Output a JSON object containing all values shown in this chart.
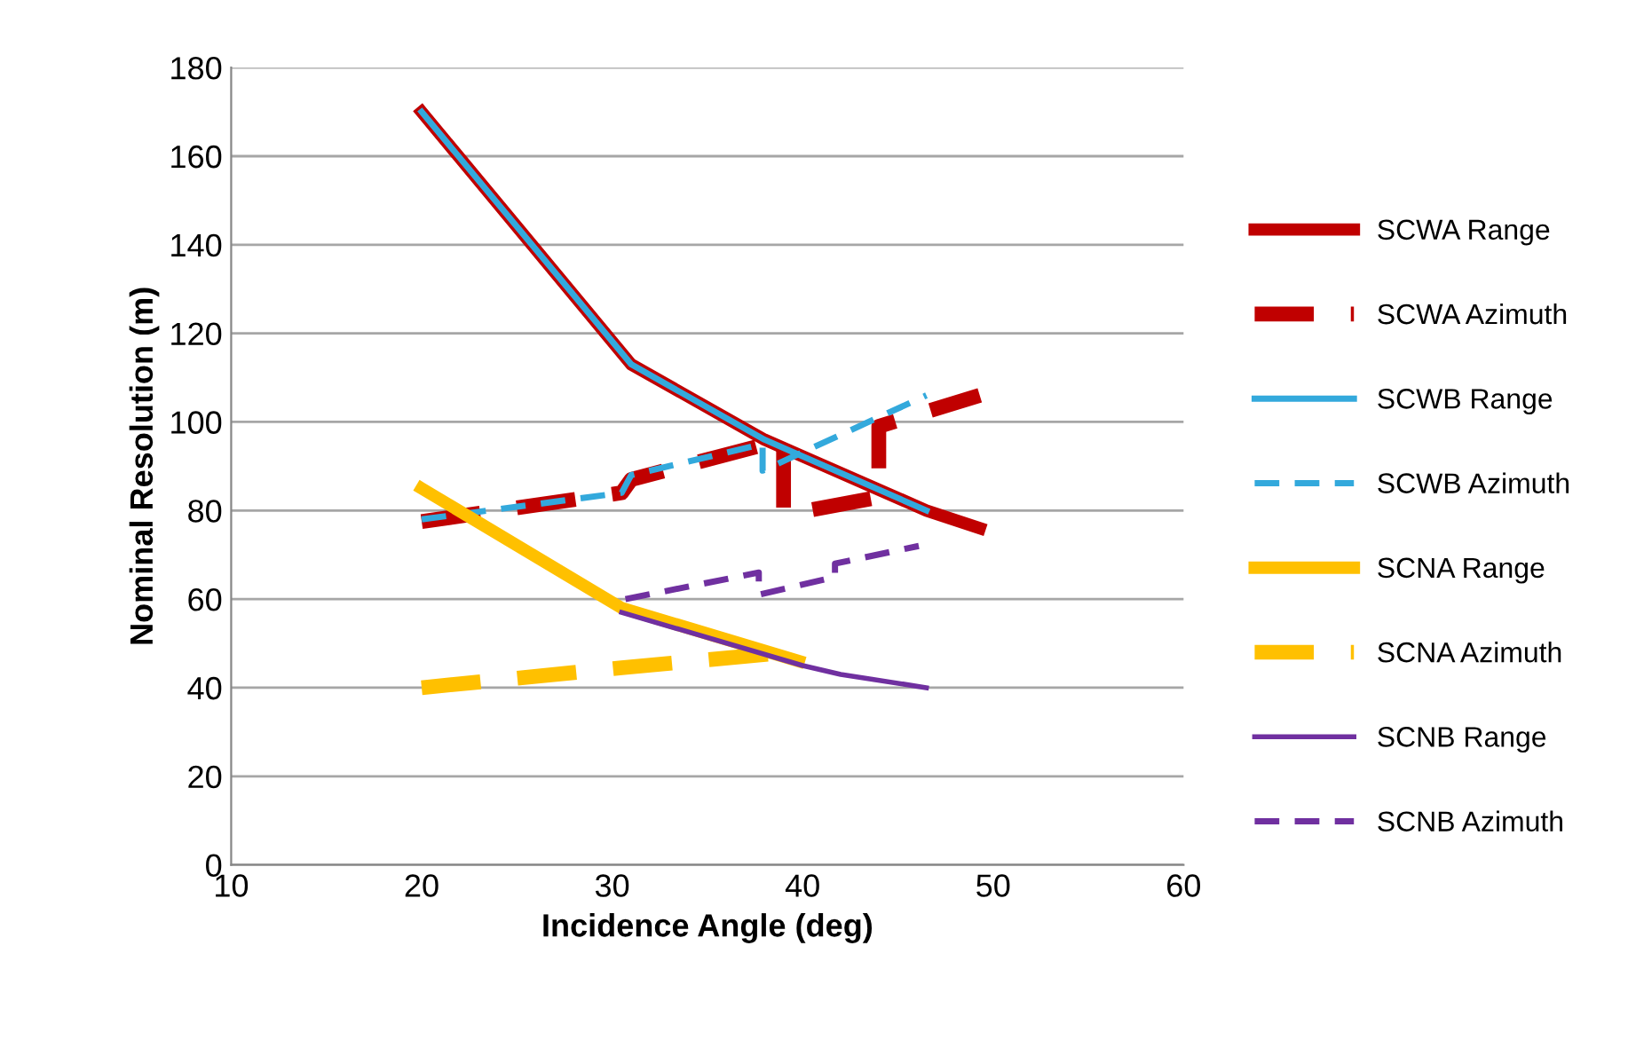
{
  "chart_data": {
    "type": "line",
    "xlabel": "Incidence Angle (deg)",
    "ylabel": "Nominal Resolution (m)",
    "xlim": [
      10,
      60
    ],
    "xticks": [
      10,
      20,
      30,
      40,
      50,
      60
    ],
    "ylim": [
      0,
      180
    ],
    "yticks": [
      0,
      20,
      40,
      60,
      80,
      100,
      120,
      140,
      160,
      180
    ],
    "grid": "y",
    "legend": "right",
    "marker": "none",
    "series": [
      {
        "name": "SCWA Range",
        "color": "#c00000",
        "line_style": "solid",
        "x": [
          20,
          31,
          38,
          46.5,
          49.3
        ],
        "values": [
          170,
          113,
          96,
          80,
          76
        ]
      },
      {
        "name": "SCWA Azimuth",
        "color": "#c00000",
        "line_style": "dashed",
        "x": [
          20,
          30.5,
          31,
          39,
          39,
          44,
          44,
          49.3
        ],
        "values": [
          77.5,
          84,
          87,
          96,
          79,
          83,
          99,
          106
        ]
      },
      {
        "name": "SCWB Range",
        "color": "#33a9dc",
        "line_style": "solid",
        "x": [
          20,
          31,
          38,
          46.5
        ],
        "values": [
          170,
          113,
          96,
          80
        ]
      },
      {
        "name": "SCWB Azimuth",
        "color": "#33a9dc",
        "line_style": "dashed",
        "x": [
          20,
          30.5,
          31,
          37.9,
          37.9,
          46.5
        ],
        "values": [
          78,
          84,
          88,
          95,
          89,
          106
        ]
      },
      {
        "name": "SCNA Range",
        "color": "#ffc000",
        "line_style": "solid",
        "x": [
          20,
          30.5,
          39.8
        ],
        "values": [
          85,
          58,
          46
        ]
      },
      {
        "name": "SCNA Azimuth",
        "color": "#ffc000",
        "line_style": "dashed",
        "x": [
          20,
          30.5,
          39.3
        ],
        "values": [
          40,
          44.5,
          48
        ]
      },
      {
        "name": "SCNB Range",
        "color": "#7030a0",
        "line_style": "solid",
        "x": [
          30.5,
          40,
          42,
          46.5
        ],
        "values": [
          57,
          45,
          43,
          40
        ]
      },
      {
        "name": "SCNB Azimuth",
        "color": "#7030a0",
        "line_style": "dashed",
        "x": [
          30.7,
          37.7,
          37.7,
          41.7,
          41.7,
          46.1
        ],
        "values": [
          60,
          66,
          61,
          65,
          68,
          72
        ]
      }
    ]
  }
}
